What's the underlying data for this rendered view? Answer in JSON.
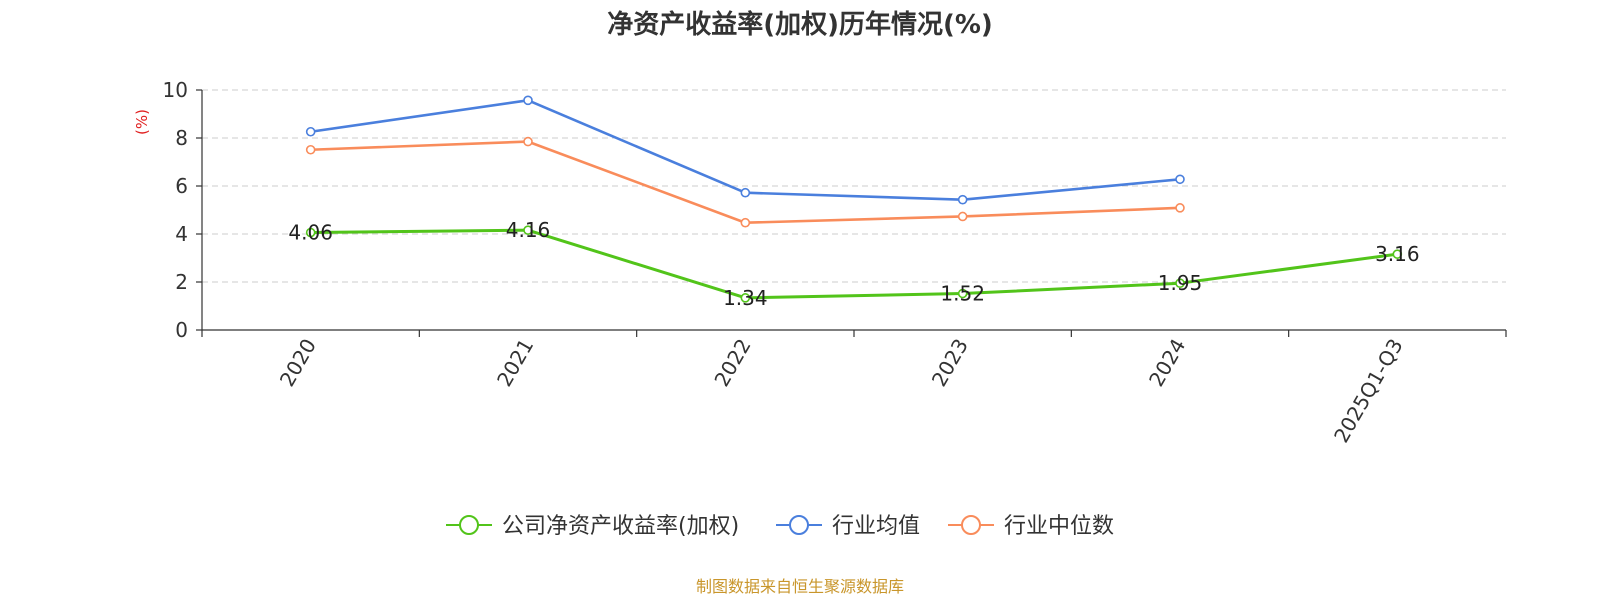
{
  "chart_data": {
    "type": "line",
    "title": "净资产收益率(加权)历年情况(%)",
    "ylabel": "(%)",
    "xlabel": "",
    "ylim": [
      0,
      10
    ],
    "yticks": [
      0,
      2,
      4,
      6,
      8,
      10
    ],
    "grid": true,
    "categories": [
      "2020",
      "2021",
      "2022",
      "2023",
      "2024",
      "2025Q1-Q3"
    ],
    "series": [
      {
        "name": "公司净资产收益率(加权)",
        "color": "#52c41a",
        "values": [
          4.06,
          4.16,
          1.34,
          1.52,
          1.95,
          3.16
        ],
        "labels": [
          "4.06",
          "4.16",
          "1.34",
          "1.52",
          "1.95",
          "3.16"
        ]
      },
      {
        "name": "行业均值",
        "color": "#4a7fdd",
        "values": [
          8.26,
          9.57,
          5.72,
          5.43,
          6.28,
          null
        ]
      },
      {
        "name": "行业中位数",
        "color": "#f98c5b",
        "values": [
          7.51,
          7.85,
          4.47,
          4.73,
          5.09,
          null
        ]
      }
    ],
    "legend_position": "bottom-center",
    "source": "制图数据来自恒生聚源数据库",
    "unit_color": "#e02020",
    "source_color": "#c9962b"
  }
}
